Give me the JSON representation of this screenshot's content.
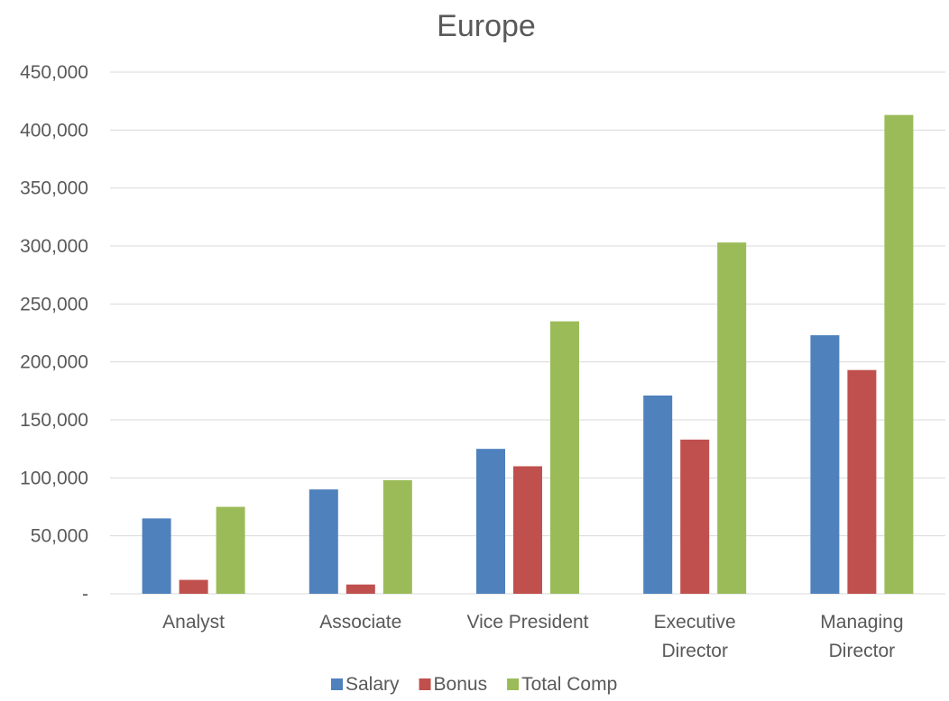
{
  "chart_data": {
    "type": "bar",
    "title": "Europe",
    "xlabel": "",
    "ylabel": "",
    "categories": [
      [
        "Analyst"
      ],
      [
        "Associate"
      ],
      [
        "Vice President"
      ],
      [
        "Executive",
        "Director"
      ],
      [
        "Managing",
        "Director"
      ]
    ],
    "series": [
      {
        "name": "Salary",
        "color": "#4F81BD",
        "values": [
          65000,
          90000,
          125000,
          171000,
          223000
        ]
      },
      {
        "name": "Bonus",
        "color": "#C0504D",
        "values": [
          12000,
          8000,
          110000,
          133000,
          193000
        ]
      },
      {
        "name": "Total Comp",
        "color": "#9BBB59",
        "values": [
          75000,
          98000,
          235000,
          303000,
          413000
        ]
      }
    ],
    "ylim": [
      0,
      450000
    ],
    "yticks": [
      {
        "value": 0,
        "label": "-"
      },
      {
        "value": 50000,
        "label": "50,000"
      },
      {
        "value": 100000,
        "label": "100,000"
      },
      {
        "value": 150000,
        "label": "150,000"
      },
      {
        "value": 200000,
        "label": "200,000"
      },
      {
        "value": 250000,
        "label": "250,000"
      },
      {
        "value": 300000,
        "label": "300,000"
      },
      {
        "value": 350000,
        "label": "350,000"
      },
      {
        "value": 400000,
        "label": "400,000"
      },
      {
        "value": 450000,
        "label": "450,000"
      }
    ],
    "grid": true,
    "legend_position": "bottom"
  }
}
